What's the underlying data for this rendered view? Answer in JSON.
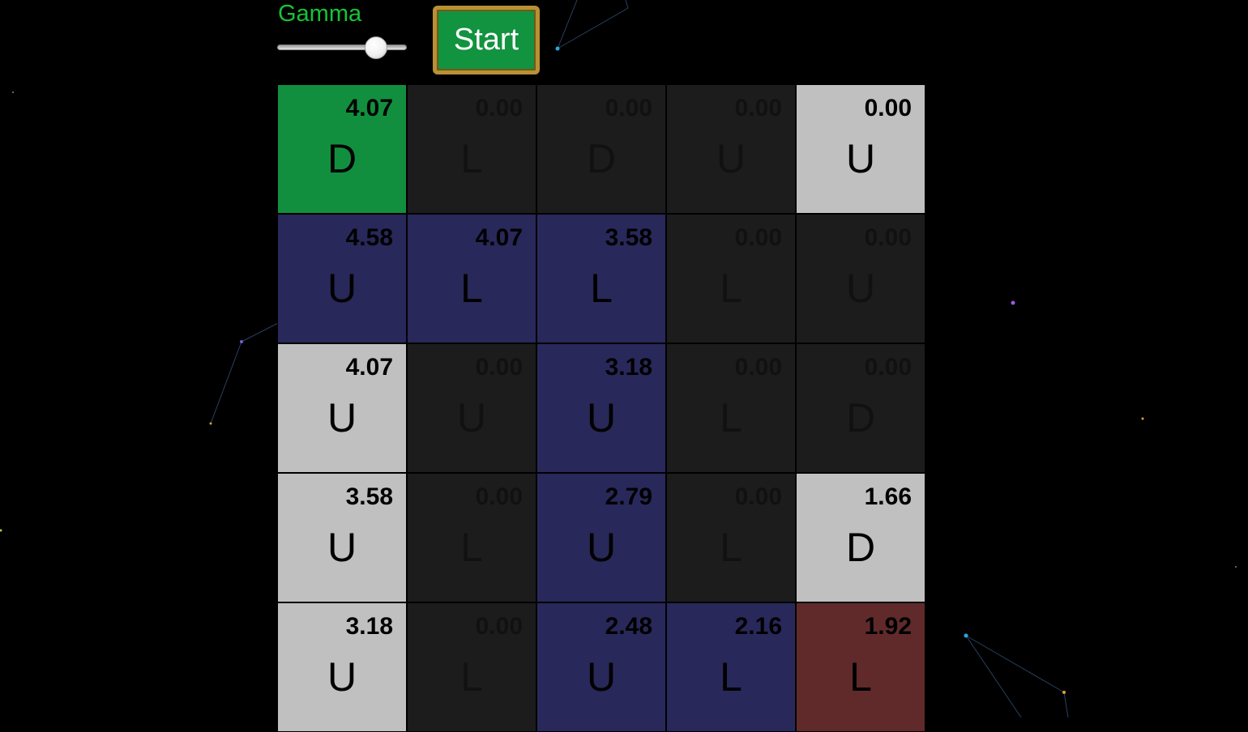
{
  "controls": {
    "gamma_label": "Gamma",
    "gamma_value": 0.82,
    "start_label": "Start"
  },
  "colors": {
    "start": "#128f3e",
    "wall": "#c0c0c0",
    "path": "#29285a",
    "empty": "#1c1c1c",
    "goal": "#602a2b",
    "label_green": "#16c336"
  },
  "grid": {
    "rows": [
      [
        {
          "value": "4.07",
          "action": "D",
          "type": "start"
        },
        {
          "value": "0.00",
          "action": "L",
          "type": "empty"
        },
        {
          "value": "0.00",
          "action": "D",
          "type": "empty"
        },
        {
          "value": "0.00",
          "action": "U",
          "type": "empty"
        },
        {
          "value": "0.00",
          "action": "U",
          "type": "wall"
        }
      ],
      [
        {
          "value": "4.58",
          "action": "U",
          "type": "path"
        },
        {
          "value": "4.07",
          "action": "L",
          "type": "path"
        },
        {
          "value": "3.58",
          "action": "L",
          "type": "path"
        },
        {
          "value": "0.00",
          "action": "L",
          "type": "empty"
        },
        {
          "value": "0.00",
          "action": "U",
          "type": "empty"
        }
      ],
      [
        {
          "value": "4.07",
          "action": "U",
          "type": "wall"
        },
        {
          "value": "0.00",
          "action": "U",
          "type": "empty"
        },
        {
          "value": "3.18",
          "action": "U",
          "type": "path"
        },
        {
          "value": "0.00",
          "action": "L",
          "type": "empty"
        },
        {
          "value": "0.00",
          "action": "D",
          "type": "empty"
        }
      ],
      [
        {
          "value": "3.58",
          "action": "U",
          "type": "wall"
        },
        {
          "value": "0.00",
          "action": "L",
          "type": "empty"
        },
        {
          "value": "2.79",
          "action": "U",
          "type": "path"
        },
        {
          "value": "0.00",
          "action": "L",
          "type": "empty"
        },
        {
          "value": "1.66",
          "action": "D",
          "type": "wall"
        }
      ],
      [
        {
          "value": "3.18",
          "action": "U",
          "type": "wall"
        },
        {
          "value": "0.00",
          "action": "L",
          "type": "empty"
        },
        {
          "value": "2.48",
          "action": "U",
          "type": "path"
        },
        {
          "value": "2.16",
          "action": "L",
          "type": "path"
        },
        {
          "value": "1.92",
          "action": "L",
          "type": "goal"
        }
      ]
    ]
  }
}
